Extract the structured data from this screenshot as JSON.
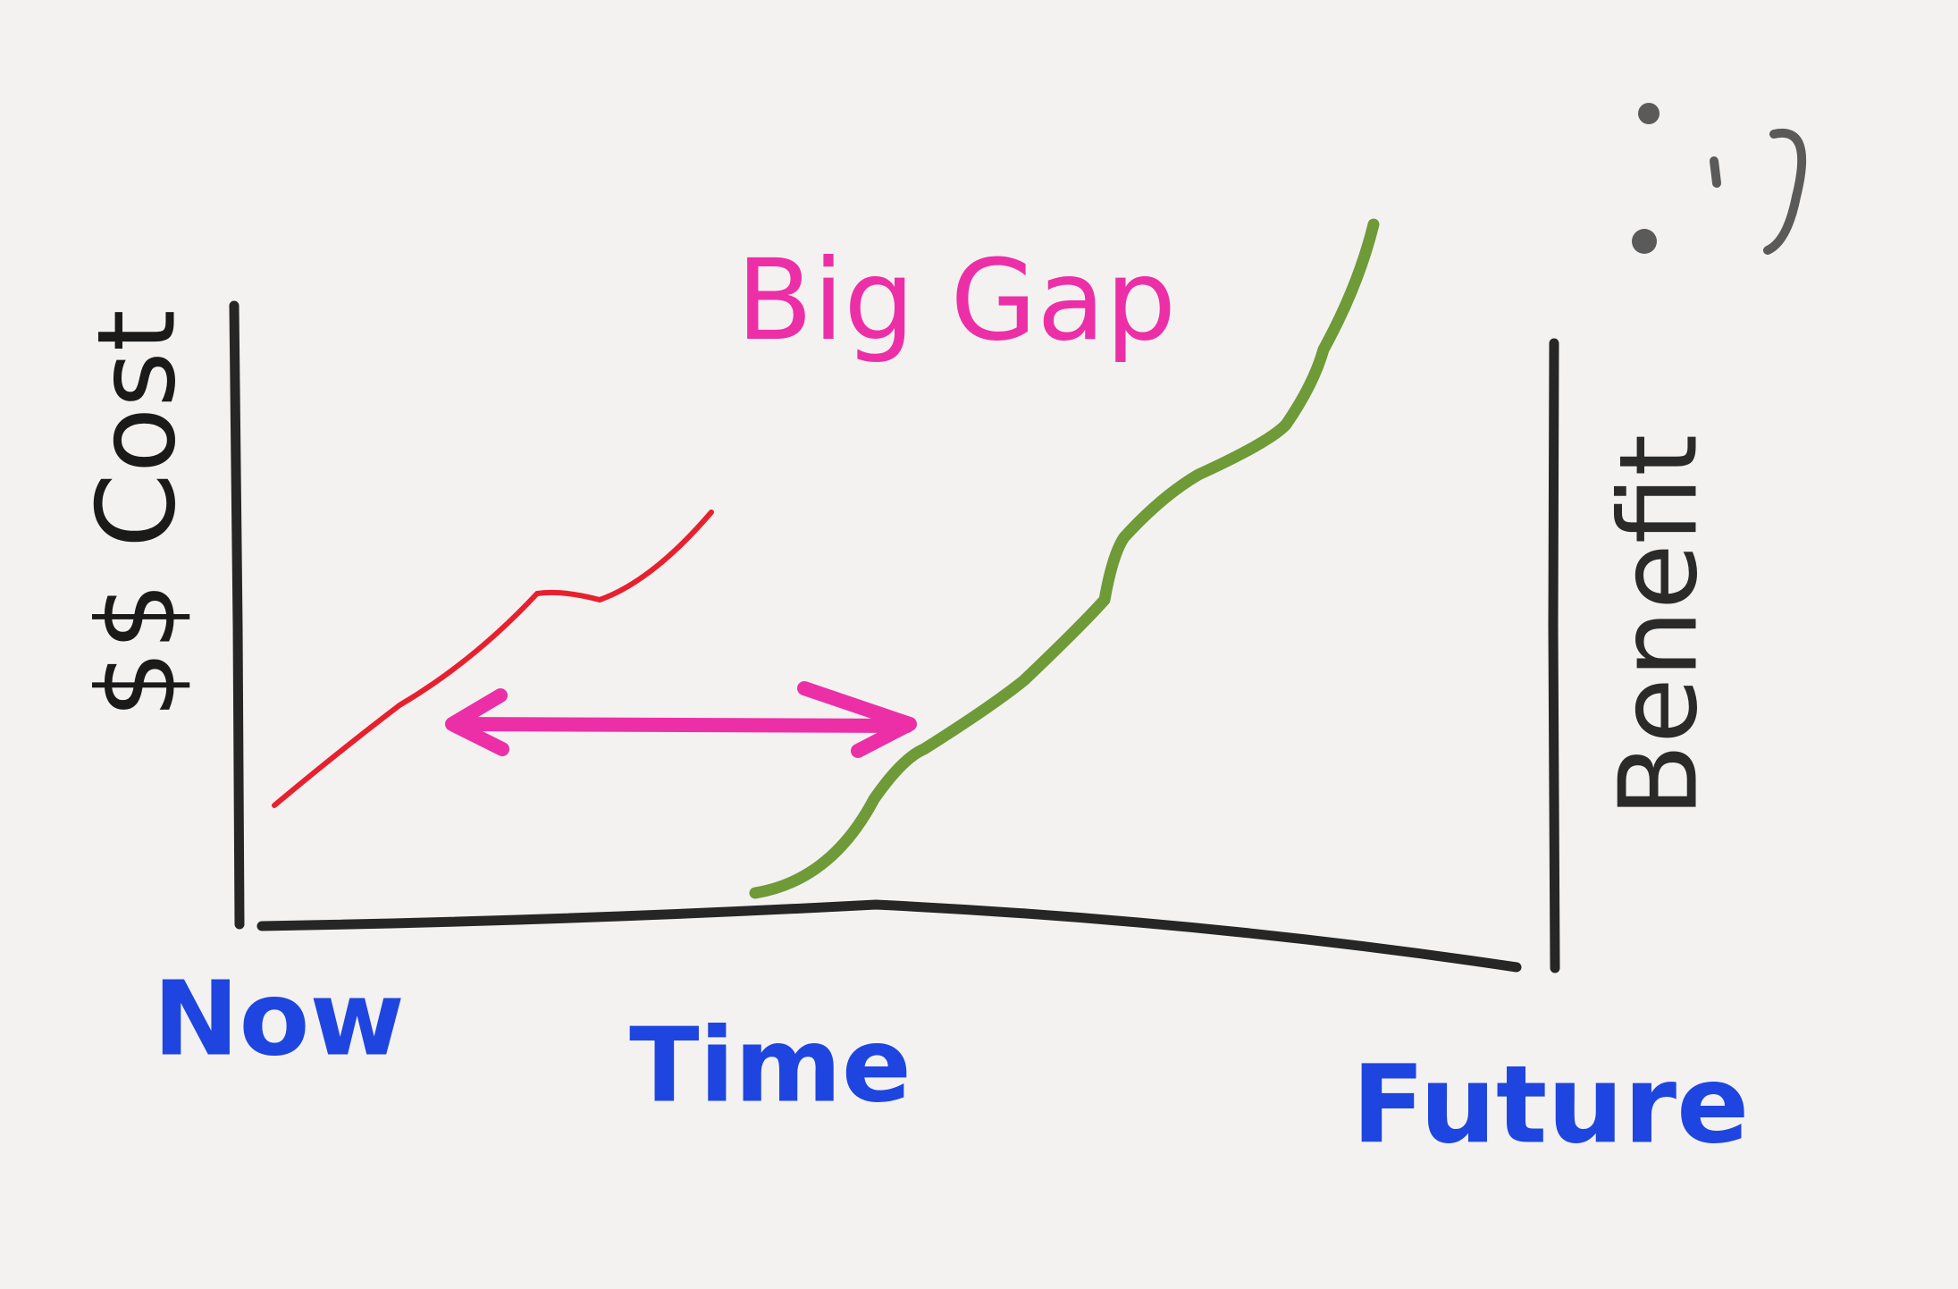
{
  "labels": {
    "y_axis": "$$ Cost",
    "annotation": "Big Gap",
    "y2_axis": "Benefit",
    "x_start": "Now",
    "x_axis": "Time",
    "x_end": "Future"
  }
}
